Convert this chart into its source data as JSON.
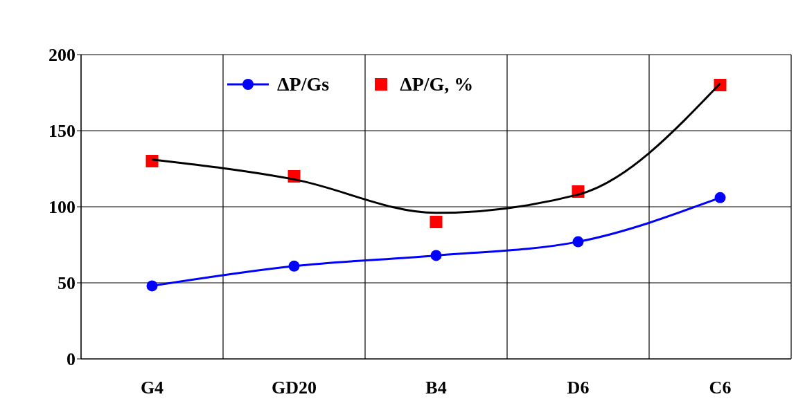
{
  "chart_data": {
    "type": "line",
    "categories": [
      "G4",
      "GD20",
      "B4",
      "D6",
      "C6"
    ],
    "series": [
      {
        "name": "ΔP/Gs",
        "marker": "circle",
        "color": "#0000ff",
        "values": [
          48,
          61,
          68,
          77,
          106
        ]
      },
      {
        "name": "ΔP/G, %",
        "type": "scatter",
        "marker": "square",
        "color": "#ff0000",
        "values": [
          130,
          120,
          90,
          110,
          180
        ]
      },
      {
        "marker": "none",
        "color": "#000000",
        "values": [
          131,
          118,
          96,
          108,
          181
        ]
      }
    ],
    "ylim": [
      0,
      200
    ],
    "yticks": [
      0,
      50,
      100,
      150,
      200
    ],
    "grid": true,
    "legend": "top"
  }
}
